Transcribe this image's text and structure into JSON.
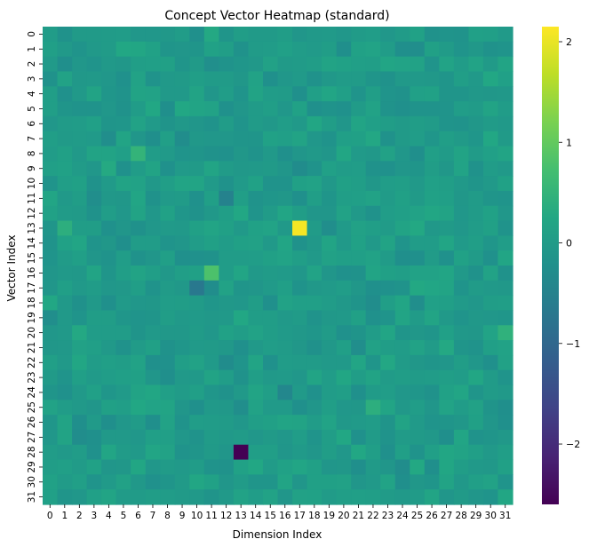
{
  "chart_data": {
    "type": "heatmap",
    "title": "Concept Vector Heatmap (standard)",
    "xlabel": "Dimension Index",
    "ylabel": "Vector Index",
    "rows": 32,
    "cols": 32,
    "xticklabels": [
      "0",
      "1",
      "2",
      "3",
      "4",
      "5",
      "6",
      "7",
      "8",
      "9",
      "10",
      "11",
      "12",
      "13",
      "14",
      "15",
      "16",
      "17",
      "18",
      "19",
      "20",
      "21",
      "22",
      "23",
      "24",
      "25",
      "26",
      "27",
      "28",
      "29",
      "30",
      "31"
    ],
    "yticklabels": [
      "0",
      "1",
      "2",
      "3",
      "4",
      "5",
      "6",
      "7",
      "8",
      "9",
      "10",
      "11",
      "12",
      "13",
      "14",
      "15",
      "16",
      "17",
      "18",
      "19",
      "20",
      "21",
      "22",
      "23",
      "24",
      "25",
      "26",
      "27",
      "28",
      "29",
      "30",
      "31"
    ],
    "colormap": "viridis",
    "vmin": -2.6,
    "vmax": 2.15,
    "colorbar_ticks": [
      2,
      1,
      0,
      -1,
      -2
    ],
    "colorbar_ticklabels": [
      "2",
      "1",
      "0",
      "−1",
      "−2"
    ],
    "background_value_range": [
      -0.3,
      0.3
    ],
    "notable_cells": [
      {
        "row": 13,
        "col": 17,
        "value": 2.1
      },
      {
        "row": 16,
        "col": 11,
        "value": 0.8
      },
      {
        "row": 17,
        "col": 10,
        "value": -0.7
      },
      {
        "row": 28,
        "col": 13,
        "value": -2.6
      },
      {
        "row": 11,
        "col": 12,
        "value": -0.5
      },
      {
        "row": 8,
        "col": 6,
        "value": 0.5
      },
      {
        "row": 24,
        "col": 16,
        "value": -0.4
      },
      {
        "row": 25,
        "col": 22,
        "value": 0.4
      },
      {
        "row": 20,
        "col": 31,
        "value": 0.45
      },
      {
        "row": 13,
        "col": 1,
        "value": 0.4
      },
      {
        "row": 22,
        "col": 12,
        "value": -0.3
      },
      {
        "row": 9,
        "col": 17,
        "value": -0.3
      }
    ]
  }
}
